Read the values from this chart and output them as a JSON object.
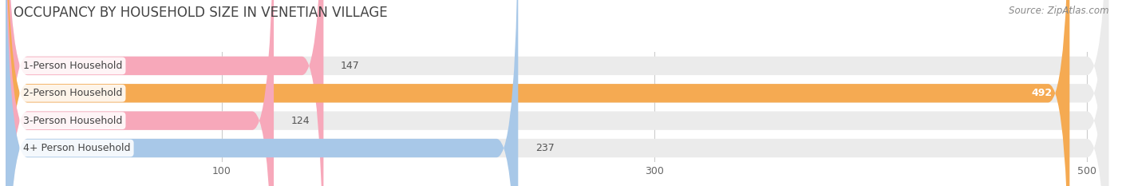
{
  "title": "OCCUPANCY BY HOUSEHOLD SIZE IN VENETIAN VILLAGE",
  "source": "Source: ZipAtlas.com",
  "categories": [
    "1-Person Household",
    "2-Person Household",
    "3-Person Household",
    "4+ Person Household"
  ],
  "values": [
    147,
    492,
    124,
    237
  ],
  "bar_colors": [
    "#f7a8ba",
    "#f5aa52",
    "#f7a8ba",
    "#a8c8e8"
  ],
  "label_colors": [
    "#555555",
    "#ffffff",
    "#555555",
    "#555555"
  ],
  "background_color": "#ffffff",
  "bar_background_color": "#ebebeb",
  "xlim": [
    0,
    510
  ],
  "xticks": [
    100,
    300,
    500
  ],
  "figsize": [
    14.06,
    2.33
  ],
  "dpi": 100,
  "bar_height": 0.68,
  "title_fontsize": 12,
  "label_fontsize": 9,
  "value_fontsize": 9,
  "tick_fontsize": 9,
  "source_fontsize": 8.5
}
